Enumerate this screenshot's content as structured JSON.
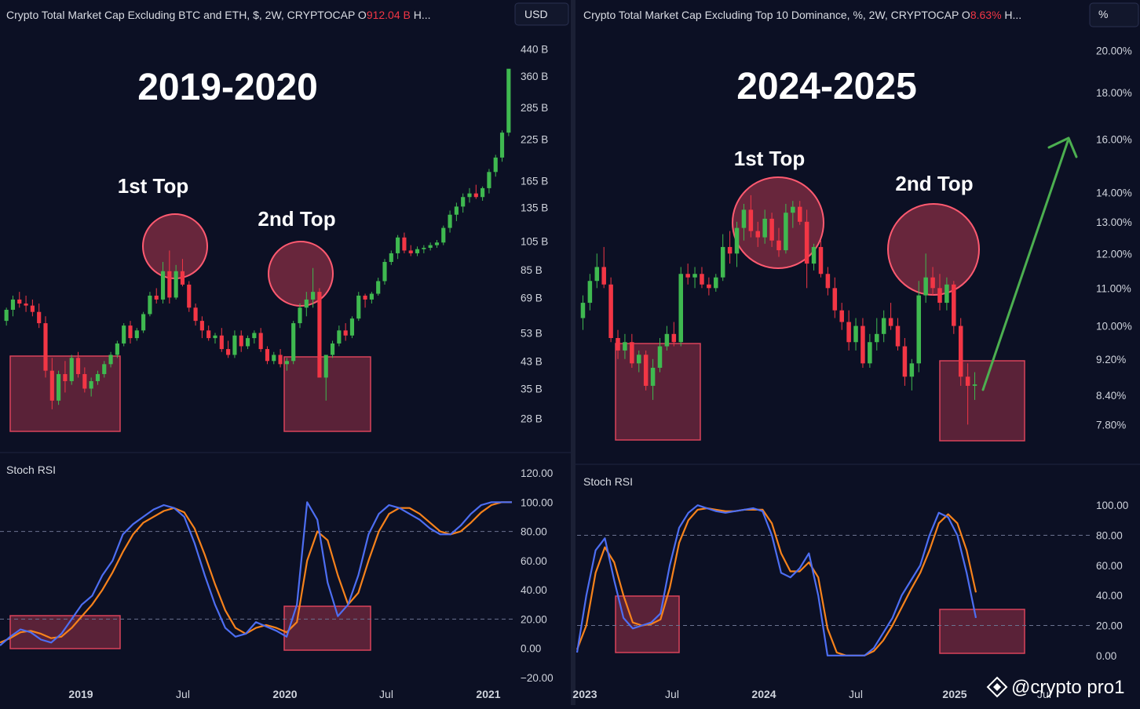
{
  "colors": {
    "background": "#0c1024",
    "candle_up": "#3fb950",
    "candle_down": "#f23645",
    "rsi_k": "#4d6ef2",
    "rsi_d": "#f7821b",
    "highlight": "#d9435a",
    "arrow": "#4caf50"
  },
  "left": {
    "title_prefix": "Crypto Total Market Cap Excluding BTC and ETH, $, 2W, CRYPTOCAP  O",
    "title_value": "912.04 B",
    "title_suffix": " H...",
    "unit": "USD",
    "year_banner": "2019-2020",
    "first_top": "1st Top",
    "second_top": "2nd Top",
    "indicator": "Stoch RSI",
    "dates": [
      {
        "label": "2019",
        "bold": true
      },
      {
        "label": "Jul",
        "bold": false
      },
      {
        "label": "2020",
        "bold": true
      },
      {
        "label": "Jul",
        "bold": false
      },
      {
        "label": "2021",
        "bold": true
      }
    ]
  },
  "right": {
    "title_prefix": "Crypto Total Market Cap Excluding Top 10 Dominance, %, 2W, CRYPTOCAP  O",
    "title_value": "8.63%",
    "title_suffix": " H...",
    "unit": "%",
    "year_banner": "2024-2025",
    "first_top": "1st Top",
    "second_top": "2nd Top",
    "indicator": "Stoch RSI",
    "dates": [
      {
        "label": "2023",
        "bold": true
      },
      {
        "label": "Jul",
        "bold": false
      },
      {
        "label": "2024",
        "bold": true
      },
      {
        "label": "Jul",
        "bold": false
      },
      {
        "label": "2025",
        "bold": true
      },
      {
        "label": "Jul",
        "bold": false
      }
    ]
  },
  "watermark": "@crypto pro1",
  "chart_data": [
    {
      "type": "candlestick",
      "title": "Crypto Total Market Cap Excluding BTC and ETH, $, 2W, CRYPTOCAP",
      "scale": "log",
      "ylabel": "USD",
      "ylim": [
        24,
        460
      ],
      "yticks": [
        "440 B",
        "360 B",
        "285 B",
        "225 B",
        "165 B",
        "135 B",
        "105 B",
        "85 B",
        "69 B",
        "53 B",
        "43 B",
        "35 B",
        "28 B"
      ],
      "xticks": [
        "2019",
        "Jul",
        "2020",
        "Jul",
        "2021"
      ],
      "annotations": [
        "2019-2020",
        "1st Top",
        "2nd Top"
      ],
      "candles_ohlc": [
        [
          58,
          64,
          56,
          63
        ],
        [
          63,
          70,
          60,
          68
        ],
        [
          68,
          72,
          64,
          66
        ],
        [
          66,
          70,
          62,
          65
        ],
        [
          65,
          68,
          60,
          62
        ],
        [
          62,
          66,
          55,
          57
        ],
        [
          57,
          60,
          38,
          40
        ],
        [
          40,
          44,
          30,
          32
        ],
        [
          32,
          40,
          31,
          39
        ],
        [
          39,
          43,
          34,
          37
        ],
        [
          37,
          45,
          36,
          44
        ],
        [
          44,
          46,
          38,
          39
        ],
        [
          39,
          41,
          34,
          35
        ],
        [
          35,
          38,
          33,
          37
        ],
        [
          37,
          40,
          36,
          39
        ],
        [
          39,
          43,
          38,
          42
        ],
        [
          42,
          46,
          41,
          45
        ],
        [
          45,
          50,
          44,
          49
        ],
        [
          49,
          57,
          48,
          56
        ],
        [
          56,
          58,
          49,
          51
        ],
        [
          51,
          55,
          50,
          54
        ],
        [
          54,
          62,
          53,
          61
        ],
        [
          61,
          72,
          60,
          70
        ],
        [
          70,
          74,
          66,
          68
        ],
        [
          68,
          90,
          66,
          84
        ],
        [
          84,
          98,
          66,
          69
        ],
        [
          69,
          88,
          68,
          84
        ],
        [
          84,
          92,
          75,
          76
        ],
        [
          76,
          78,
          62,
          64
        ],
        [
          64,
          66,
          56,
          58
        ],
        [
          58,
          60,
          51,
          54
        ],
        [
          54,
          56,
          50,
          51
        ],
        [
          51,
          53,
          49,
          52
        ],
        [
          52,
          55,
          46,
          47
        ],
        [
          47,
          50,
          44,
          45
        ],
        [
          45,
          54,
          44,
          52
        ],
        [
          52,
          54,
          46,
          48
        ],
        [
          48,
          52,
          47,
          51
        ],
        [
          51,
          54,
          49,
          53
        ],
        [
          53,
          55,
          46,
          47
        ],
        [
          47,
          48,
          42,
          43
        ],
        [
          43,
          46,
          42,
          45
        ],
        [
          45,
          47,
          41,
          42
        ],
        [
          42,
          44,
          40,
          43
        ],
        [
          43,
          58,
          42,
          57
        ],
        [
          57,
          66,
          55,
          64
        ],
        [
          64,
          72,
          60,
          68
        ],
        [
          68,
          86,
          64,
          72
        ],
        [
          72,
          74,
          52,
          38
        ],
        [
          38,
          44,
          32,
          45
        ],
        [
          45,
          50,
          44,
          49
        ],
        [
          49,
          56,
          48,
          54
        ],
        [
          54,
          57,
          50,
          52
        ],
        [
          52,
          60,
          51,
          59
        ],
        [
          59,
          72,
          58,
          70
        ],
        [
          70,
          71,
          64,
          68
        ],
        [
          68,
          72,
          66,
          71
        ],
        [
          71,
          80,
          70,
          78
        ],
        [
          78,
          92,
          76,
          90
        ],
        [
          90,
          98,
          88,
          96
        ],
        [
          96,
          110,
          92,
          108
        ],
        [
          108,
          112,
          96,
          98
        ],
        [
          98,
          102,
          94,
          96
        ],
        [
          96,
          101,
          94,
          99
        ],
        [
          99,
          102,
          96,
          100
        ],
        [
          100,
          104,
          98,
          102
        ],
        [
          102,
          106,
          100,
          104
        ],
        [
          104,
          118,
          102,
          116
        ],
        [
          116,
          132,
          112,
          128
        ],
        [
          128,
          140,
          122,
          136
        ],
        [
          136,
          150,
          130,
          146
        ],
        [
          146,
          156,
          140,
          150
        ],
        [
          150,
          160,
          144,
          146
        ],
        [
          146,
          158,
          142,
          156
        ],
        [
          156,
          180,
          150,
          176
        ],
        [
          176,
          200,
          170,
          196
        ],
        [
          196,
          240,
          190,
          236
        ],
        [
          236,
          280,
          230,
          380
        ]
      ],
      "stoch_rsi": {
        "ylim": [
          -20,
          120
        ],
        "yticks": [
          "120.00",
          "100.00",
          "80.00",
          "60.00",
          "40.00",
          "20.00",
          "0.00",
          "−20.00"
        ],
        "levels": [
          80,
          20
        ],
        "k": [
          2,
          8,
          13,
          11,
          6,
          4,
          10,
          20,
          30,
          36,
          50,
          60,
          78,
          85,
          90,
          95,
          98,
          96,
          90,
          72,
          50,
          30,
          14,
          8,
          10,
          18,
          15,
          12,
          8,
          30,
          100,
          88,
          45,
          22,
          30,
          50,
          78,
          92,
          98,
          96,
          92,
          88,
          82,
          78,
          78,
          84,
          92,
          98,
          100,
          100,
          100
        ],
        "d": [
          4,
          7,
          11,
          12,
          10,
          7,
          8,
          14,
          22,
          30,
          40,
          52,
          66,
          78,
          86,
          90,
          94,
          96,
          93,
          82,
          64,
          44,
          26,
          14,
          10,
          14,
          16,
          14,
          11,
          18,
          60,
          80,
          74,
          50,
          30,
          38,
          60,
          80,
          92,
          96,
          96,
          92,
          86,
          80,
          78,
          80,
          86,
          93,
          98,
          100,
          100
        ]
      }
    },
    {
      "type": "candlestick",
      "title": "Crypto Total Market Cap Excluding Top 10 Dominance, %, 2W, CRYPTOCAP",
      "scale": "log",
      "ylabel": "%",
      "ylim": [
        7.4,
        21.0
      ],
      "yticks": [
        "20.00%",
        "18.00%",
        "16.00%",
        "14.00%",
        "13.00%",
        "12.00%",
        "11.00%",
        "10.00%",
        "9.20%",
        "8.40%",
        "7.80%"
      ],
      "xticks": [
        "2023",
        "Jul",
        "2024",
        "Jul",
        "2025",
        "Jul"
      ],
      "annotations": [
        "2024-2025",
        "1st Top",
        "2nd Top"
      ],
      "candles_ohlc": [
        [
          10.2,
          10.8,
          9.9,
          10.6
        ],
        [
          10.6,
          11.4,
          10.4,
          11.2
        ],
        [
          11.2,
          12.0,
          11.0,
          11.6
        ],
        [
          11.6,
          12.2,
          11.0,
          11.1
        ],
        [
          11.1,
          11.3,
          9.6,
          9.7
        ],
        [
          9.7,
          9.9,
          9.2,
          9.4
        ],
        [
          9.4,
          9.8,
          9.2,
          9.6
        ],
        [
          9.6,
          9.8,
          9.0,
          9.1
        ],
        [
          9.1,
          9.4,
          8.9,
          9.3
        ],
        [
          9.3,
          9.4,
          8.5,
          8.6
        ],
        [
          8.6,
          9.2,
          8.3,
          9.0
        ],
        [
          9.0,
          9.7,
          8.9,
          9.5
        ],
        [
          9.5,
          10.0,
          9.4,
          9.8
        ],
        [
          9.8,
          10.1,
          9.5,
          9.6
        ],
        [
          9.6,
          11.6,
          9.5,
          11.4
        ],
        [
          11.4,
          11.7,
          11.1,
          11.3
        ],
        [
          11.3,
          11.6,
          11.0,
          11.4
        ],
        [
          11.4,
          11.6,
          11.0,
          11.1
        ],
        [
          11.1,
          11.3,
          10.8,
          11.0
        ],
        [
          11.0,
          11.4,
          10.9,
          11.3
        ],
        [
          11.3,
          12.6,
          11.2,
          12.2
        ],
        [
          12.2,
          12.7,
          11.7,
          12.0
        ],
        [
          12.0,
          13.0,
          11.6,
          12.8
        ],
        [
          12.8,
          13.6,
          12.4,
          13.4
        ],
        [
          13.4,
          13.9,
          12.5,
          12.7
        ],
        [
          12.7,
          13.0,
          12.2,
          12.5
        ],
        [
          12.5,
          13.4,
          12.3,
          13.1
        ],
        [
          13.1,
          13.3,
          12.2,
          12.4
        ],
        [
          12.4,
          12.8,
          11.9,
          12.1
        ],
        [
          12.1,
          13.6,
          12.0,
          13.3
        ],
        [
          13.3,
          13.7,
          12.8,
          13.5
        ],
        [
          13.5,
          13.7,
          12.9,
          13.0
        ],
        [
          13.0,
          13.4,
          11.0,
          11.7
        ],
        [
          11.7,
          12.3,
          11.5,
          12.2
        ],
        [
          12.2,
          12.4,
          11.3,
          11.4
        ],
        [
          11.4,
          11.6,
          10.8,
          11.0
        ],
        [
          11.0,
          11.3,
          10.2,
          10.4
        ],
        [
          10.4,
          10.6,
          9.9,
          10.1
        ],
        [
          10.1,
          10.4,
          9.4,
          9.6
        ],
        [
          9.6,
          10.2,
          9.4,
          10.0
        ],
        [
          10.0,
          10.2,
          9.0,
          9.1
        ],
        [
          9.1,
          9.8,
          9.0,
          9.6
        ],
        [
          9.6,
          10.2,
          9.4,
          9.8
        ],
        [
          9.8,
          10.4,
          9.6,
          10.2
        ],
        [
          10.2,
          10.6,
          9.9,
          10.0
        ],
        [
          10.0,
          10.2,
          9.4,
          9.5
        ],
        [
          9.5,
          9.7,
          8.6,
          8.8
        ],
        [
          8.8,
          9.2,
          8.5,
          9.1
        ],
        [
          9.1,
          11.2,
          8.9,
          10.8
        ],
        [
          10.8,
          12.0,
          10.6,
          11.3
        ],
        [
          11.3,
          11.6,
          10.8,
          11.0
        ],
        [
          11.0,
          11.4,
          10.4,
          10.6
        ],
        [
          10.6,
          11.3,
          10.4,
          11.1
        ],
        [
          11.1,
          11.2,
          9.8,
          10.0
        ],
        [
          10.0,
          10.2,
          8.6,
          8.8
        ],
        [
          8.8,
          9.1,
          7.8,
          8.6
        ],
        [
          8.6,
          8.9,
          8.3,
          8.63
        ]
      ],
      "stoch_rsi": {
        "ylim": [
          -10,
          110
        ],
        "yticks": [
          "100.00",
          "80.00",
          "60.00",
          "40.00",
          "20.00",
          "0.00"
        ],
        "levels": [
          80,
          20
        ],
        "k": [
          2,
          40,
          70,
          78,
          50,
          25,
          18,
          20,
          22,
          28,
          60,
          85,
          95,
          100,
          98,
          96,
          95,
          96,
          97,
          98,
          96,
          80,
          55,
          52,
          58,
          68,
          40,
          0,
          0,
          0,
          0,
          0,
          5,
          15,
          25,
          40,
          50,
          60,
          80,
          95,
          92,
          80,
          55,
          25
        ],
        "d": [
          4,
          20,
          55,
          72,
          62,
          40,
          22,
          20,
          21,
          24,
          45,
          75,
          90,
          97,
          98,
          97,
          96,
          96,
          97,
          97,
          97,
          88,
          68,
          56,
          56,
          62,
          52,
          18,
          2,
          0,
          0,
          0,
          3,
          10,
          20,
          32,
          44,
          55,
          70,
          88,
          94,
          88,
          70,
          42
        ]
      }
    }
  ]
}
